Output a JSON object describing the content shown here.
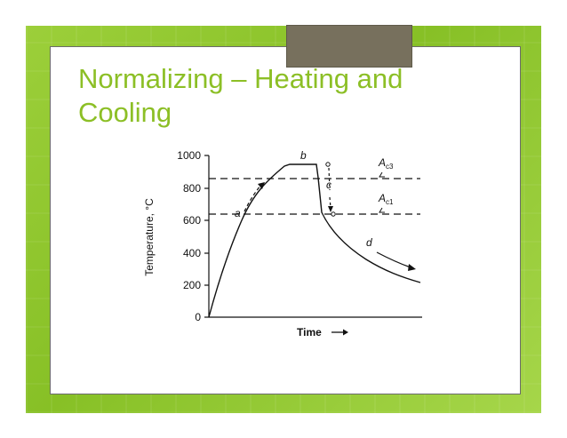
{
  "slide": {
    "title": "Normalizing – Heating and Cooling"
  },
  "diagram": {
    "y_axis_label": "Temperature, °C",
    "x_axis_label": "Time",
    "y_ticks": [
      "1000",
      "800",
      "600",
      "400",
      "200",
      "0"
    ],
    "labels": {
      "a": "a",
      "b": "b",
      "c": "c",
      "d": "d",
      "ac3_main": "A",
      "ac3_sub": "c3",
      "ac1_main": "A",
      "ac1_sub": "c1"
    }
  }
}
